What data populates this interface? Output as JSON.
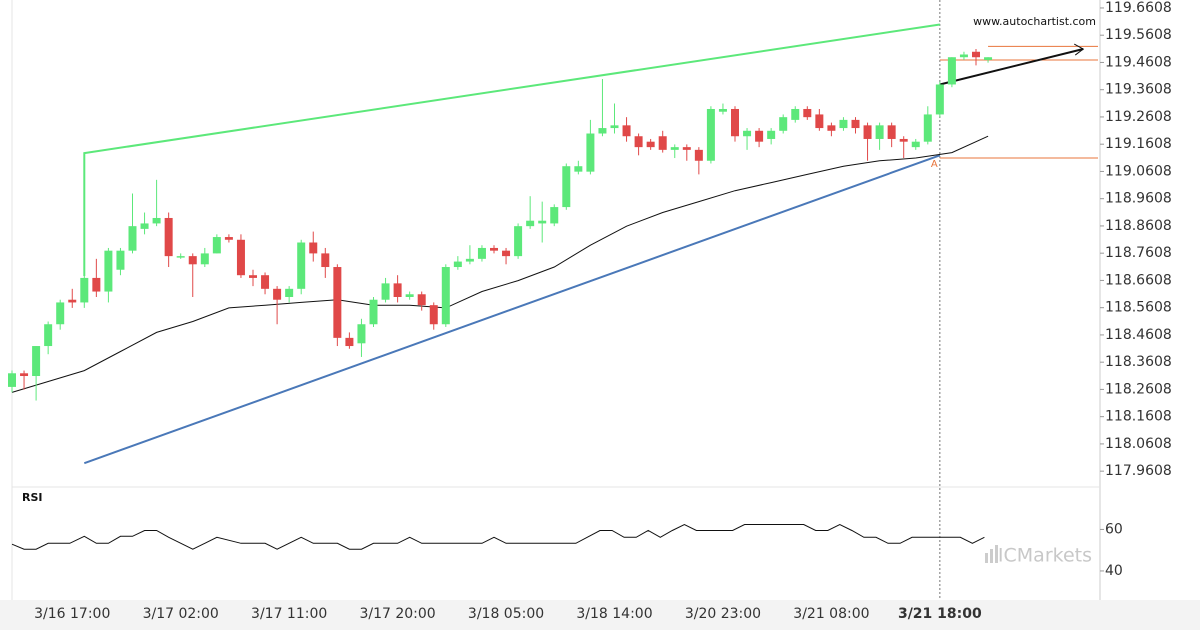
{
  "chart_data": {
    "type": "candlestick",
    "watermark": "www.autochartist.com",
    "broker": "ICMarkets",
    "pattern_label": "A",
    "categories": [
      null,
      null,
      null,
      null,
      null,
      "3/16 17:00",
      null,
      null,
      null,
      null,
      null,
      null,
      null,
      null,
      "3/17 02:00",
      null,
      null,
      null,
      null,
      null,
      null,
      null,
      null,
      "3/17 11:00",
      null,
      null,
      null,
      null,
      null,
      null,
      null,
      null,
      "3/17 20:00",
      null,
      null,
      null,
      null,
      null,
      null,
      null,
      null,
      "3/18 05:00",
      null,
      null,
      null,
      null,
      null,
      null,
      null,
      null,
      "3/18 14:00",
      null,
      null,
      null,
      null,
      null,
      null,
      null,
      null,
      "3/20 23:00",
      null,
      null,
      null,
      null,
      null,
      null,
      null,
      null,
      "3/21 08:00",
      null,
      null,
      null,
      null,
      null,
      null,
      null,
      null,
      "3/21 18:00",
      null,
      null,
      null,
      null
    ],
    "open": [
      118.27,
      118.32,
      118.31,
      118.42,
      118.5,
      118.59,
      118.58,
      118.67,
      118.62,
      118.7,
      118.77,
      118.85,
      118.87,
      118.89,
      118.75,
      118.75,
      118.72,
      118.76,
      118.82,
      118.81,
      118.68,
      118.68,
      118.63,
      118.6,
      118.63,
      118.8,
      118.76,
      118.71,
      118.45,
      118.43,
      118.5,
      118.59,
      118.65,
      118.6,
      118.61,
      118.57,
      118.5,
      118.71,
      118.73,
      118.74,
      118.78,
      118.77,
      118.75,
      118.86,
      118.87,
      118.87,
      118.93,
      119.06,
      119.06,
      119.2,
      119.22,
      119.23,
      119.19,
      119.17,
      119.19,
      119.14,
      119.15,
      119.14,
      119.1,
      119.28,
      119.29,
      119.19,
      119.21,
      119.18,
      119.21,
      119.25,
      119.29,
      119.27,
      119.23,
      119.22,
      119.25,
      119.23,
      119.18,
      119.23,
      119.18,
      119.15,
      119.17,
      119.27,
      119.38,
      119.48,
      119.5,
      119.47
    ],
    "high": [
      118.33,
      118.33,
      118.42,
      118.51,
      118.59,
      118.63,
      118.75,
      118.74,
      118.78,
      118.78,
      118.98,
      118.91,
      119.03,
      118.91,
      118.76,
      118.76,
      118.78,
      118.83,
      118.83,
      118.83,
      118.7,
      118.69,
      118.64,
      118.64,
      118.81,
      118.84,
      118.78,
      118.72,
      118.47,
      118.52,
      118.6,
      118.67,
      118.68,
      118.62,
      118.62,
      118.58,
      118.72,
      118.75,
      118.79,
      118.79,
      118.79,
      118.78,
      118.87,
      118.97,
      118.95,
      118.94,
      119.09,
      119.1,
      119.25,
      119.4,
      119.31,
      119.26,
      119.2,
      119.18,
      119.21,
      119.16,
      119.16,
      119.15,
      119.3,
      119.31,
      119.3,
      119.22,
      119.22,
      119.22,
      119.27,
      119.3,
      119.3,
      119.29,
      119.24,
      119.26,
      119.26,
      119.24,
      119.24,
      119.24,
      119.19,
      119.18,
      119.3,
      119.39,
      119.48,
      119.5,
      119.51,
      119.48
    ],
    "low": [
      118.25,
      118.26,
      118.22,
      118.39,
      118.48,
      118.56,
      118.56,
      118.6,
      118.58,
      118.68,
      118.76,
      118.83,
      118.86,
      118.71,
      118.74,
      118.6,
      118.71,
      118.76,
      118.8,
      118.67,
      118.64,
      118.61,
      118.5,
      118.58,
      118.61,
      118.73,
      118.67,
      118.42,
      118.41,
      118.38,
      118.49,
      118.58,
      118.58,
      118.59,
      118.55,
      118.48,
      118.49,
      118.7,
      118.72,
      118.73,
      118.76,
      118.72,
      118.74,
      118.85,
      118.8,
      118.86,
      118.92,
      119.05,
      119.05,
      119.19,
      119.2,
      119.17,
      119.12,
      119.14,
      119.13,
      119.11,
      119.1,
      119.05,
      119.09,
      119.27,
      119.17,
      119.14,
      119.15,
      119.16,
      119.2,
      119.24,
      119.25,
      119.21,
      119.19,
      119.21,
      119.2,
      119.1,
      119.14,
      119.15,
      119.11,
      119.14,
      119.16,
      119.26,
      119.37,
      119.47,
      119.45,
      119.46
    ],
    "close": [
      118.32,
      118.31,
      118.42,
      118.5,
      118.58,
      118.58,
      118.67,
      118.62,
      118.77,
      118.77,
      118.86,
      118.87,
      118.89,
      118.75,
      118.75,
      118.72,
      118.76,
      118.82,
      118.81,
      118.68,
      118.67,
      118.63,
      118.59,
      118.63,
      118.8,
      118.76,
      118.71,
      118.45,
      118.42,
      118.5,
      118.59,
      118.65,
      118.6,
      118.61,
      118.57,
      118.5,
      118.71,
      118.73,
      118.74,
      118.78,
      118.77,
      118.75,
      118.86,
      118.88,
      118.88,
      118.93,
      119.08,
      119.08,
      119.2,
      119.22,
      119.23,
      119.19,
      119.15,
      119.15,
      119.14,
      119.15,
      119.14,
      119.1,
      119.29,
      119.29,
      119.19,
      119.21,
      119.17,
      119.21,
      119.26,
      119.29,
      119.26,
      119.22,
      119.21,
      119.25,
      119.22,
      119.18,
      119.23,
      119.18,
      119.17,
      119.17,
      119.27,
      119.38,
      119.48,
      119.49,
      119.48,
      119.48
    ],
    "up_color": "#5ce87a",
    "down_color": "#e04848",
    "ylim": [
      117.91,
      119.69
    ],
    "yticks": [
      119.6608,
      119.5608,
      119.4608,
      119.3608,
      119.2608,
      119.1608,
      119.0608,
      118.9608,
      118.8608,
      118.7608,
      118.6608,
      118.5608,
      118.4608,
      118.3608,
      118.2608,
      118.1608,
      118.0608,
      117.9608
    ],
    "moving_average": {
      "color": "#111111",
      "x": [
        0,
        3,
        6,
        9,
        12,
        15,
        18,
        21,
        24,
        27,
        30,
        33,
        36,
        39,
        42,
        45,
        48,
        51,
        54,
        57,
        60,
        63,
        66,
        69,
        72,
        75,
        78,
        81
      ],
      "values": [
        118.25,
        118.29,
        118.33,
        118.4,
        118.47,
        118.51,
        118.56,
        118.57,
        118.58,
        118.59,
        118.57,
        118.57,
        118.56,
        118.62,
        118.66,
        118.71,
        118.79,
        118.86,
        118.91,
        118.95,
        118.99,
        119.02,
        119.05,
        119.08,
        119.1,
        119.11,
        119.13,
        119.19
      ]
    },
    "trendlines": [
      {
        "color": "#5ce87a",
        "x": [
          6,
          6,
          77
        ],
        "values": [
          118.677,
          119.128,
          119.6
        ]
      },
      {
        "color": "#4a78b8",
        "x": [
          6,
          77
        ],
        "values": [
          117.99,
          119.12
        ]
      },
      {
        "color": "#111111",
        "x": [
          77,
          88.9
        ],
        "values": [
          119.38,
          119.51
        ]
      }
    ],
    "levels": [
      {
        "value": 119.52,
        "start": 81
      },
      {
        "value": 119.47,
        "start": 77
      },
      {
        "value": 119.11,
        "start": 77
      }
    ],
    "level_color": "#e8743b",
    "pattern_index": 77,
    "rsi": {
      "label": "RSI",
      "color": "#111111",
      "ylim": [
        26,
        79
      ],
      "yticks": [
        60,
        40
      ],
      "x": [
        0,
        1,
        2,
        3,
        4.8,
        6,
        7,
        8,
        9,
        10,
        11,
        12,
        13,
        15,
        16,
        17,
        19,
        21,
        22,
        24,
        25,
        27,
        28,
        29,
        30,
        32,
        33,
        34,
        39,
        40,
        41,
        46.8,
        48.8,
        49.8,
        50.8,
        51.8,
        52.8,
        53.8,
        54.8,
        55.8,
        56.8,
        59.8,
        60.8,
        65.7,
        66.7,
        67.7,
        68.7,
        69.7,
        70.7,
        71.7,
        72.7,
        73.7,
        74.7,
        78.7,
        79.7,
        80.7
      ],
      "values": [
        52.9,
        50.5,
        50.5,
        53.3,
        53.3,
        56.7,
        53.3,
        53.3,
        56.7,
        56.7,
        59.5,
        59.5,
        56.2,
        50.5,
        53.3,
        56.2,
        53.3,
        53.3,
        50.5,
        56.2,
        53.3,
        53.3,
        50.5,
        50.5,
        53.3,
        53.3,
        56.2,
        53.3,
        53.3,
        56.2,
        53.3,
        53.3,
        59.5,
        59.5,
        56.2,
        56.2,
        59.5,
        56.2,
        59.5,
        62.4,
        59.5,
        59.5,
        62.4,
        62.4,
        59.5,
        59.5,
        62.4,
        59.5,
        56.2,
        56.2,
        53.3,
        53.3,
        56.2,
        56.2,
        53.3,
        56.2
      ]
    }
  }
}
